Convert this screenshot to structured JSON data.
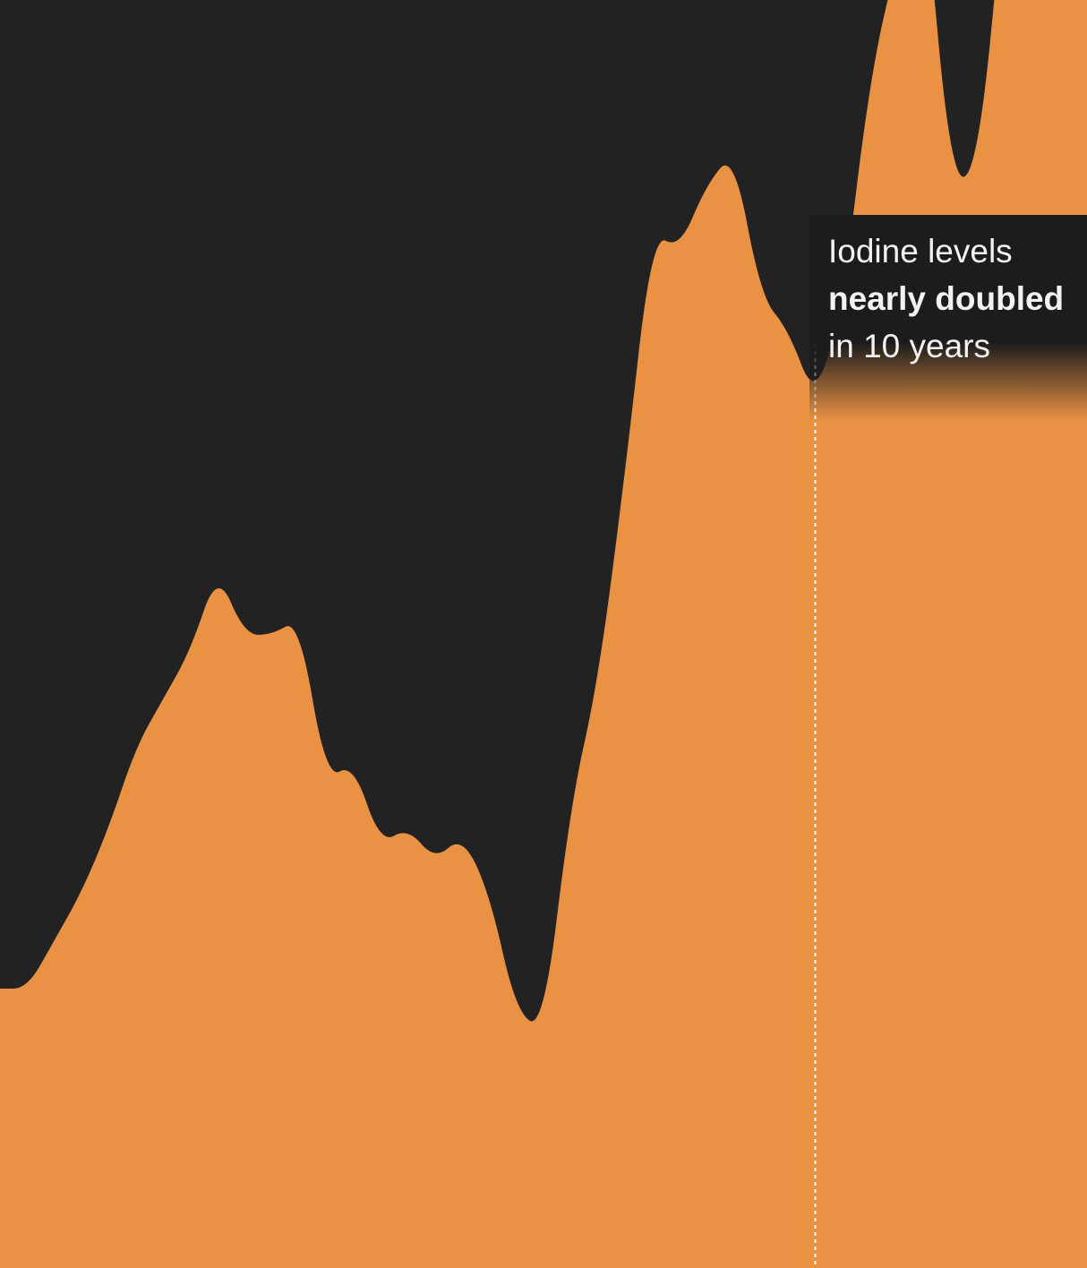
{
  "colors": {
    "background": "#222222",
    "area_fill": "#ea9244",
    "annotation_text": "#f2f2f2",
    "marker_line": "#ffffff"
  },
  "annotation": {
    "line1": "Iodine levels",
    "line2": "nearly doubled",
    "line3": "in 10 years"
  },
  "chart_data": {
    "type": "area",
    "smooth": true,
    "grid": false,
    "x": [
      0,
      1,
      2,
      3,
      4,
      5,
      6,
      7,
      8,
      9,
      10,
      11,
      12,
      13,
      14,
      15,
      16,
      17,
      18,
      19,
      20,
      21,
      22,
      23,
      24,
      25,
      26,
      27,
      28,
      29,
      30,
      31,
      32,
      33,
      34,
      35,
      36,
      37,
      38,
      39,
      40
    ],
    "values": [
      1,
      1,
      1.06,
      1.12,
      1.2,
      1.3,
      1.36,
      1.42,
      1.52,
      1.44,
      1.44,
      1.46,
      1.26,
      1.28,
      1.18,
      1.2,
      1.16,
      1.19,
      1.12,
      0.97,
      0.95,
      1.23,
      1.38,
      1.64,
      1.94,
      1.92,
      2.0,
      2.04,
      1.86,
      1.82,
      1.73,
      1.85,
      2.13,
      2.28,
      2.38,
      2.0,
      2.02,
      2.38,
      2.22,
      2.38,
      2.82
    ],
    "ylim": [
      0,
      3.4
    ],
    "marker": {
      "x": 30,
      "style": "dotted"
    }
  }
}
